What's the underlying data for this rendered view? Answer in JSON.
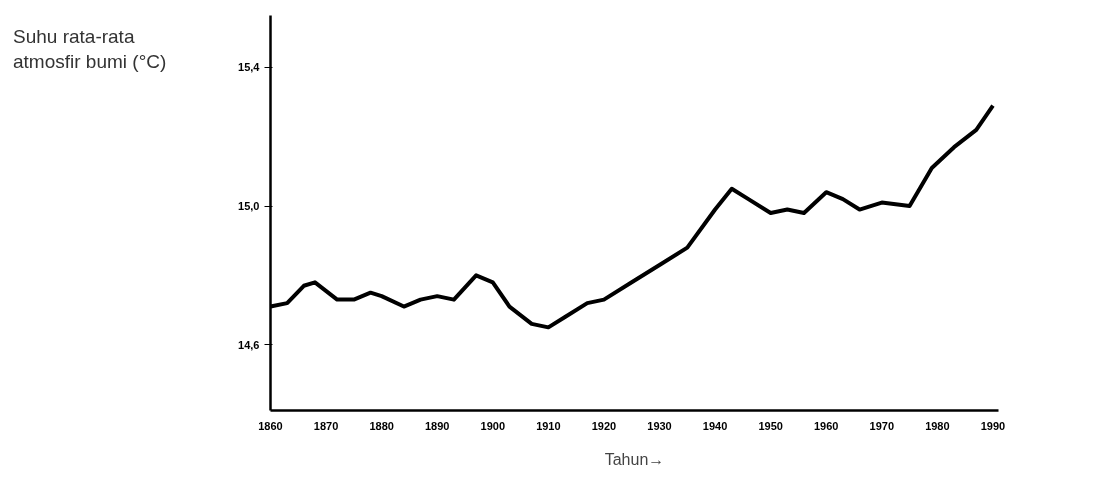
{
  "chart_data": {
    "type": "line",
    "ylabel": "Suhu rata-rata atmosfir bumi (°C)",
    "xlabel": "Tahun→",
    "x": [
      1860,
      1863,
      1866,
      1868,
      1872,
      1875,
      1878,
      1880,
      1884,
      1887,
      1890,
      1893,
      1897,
      1900,
      1903,
      1907,
      1910,
      1913,
      1917,
      1920,
      1925,
      1930,
      1935,
      1940,
      1943,
      1946,
      1950,
      1953,
      1956,
      1960,
      1963,
      1966,
      1970,
      1975,
      1979,
      1983,
      1987,
      1990
    ],
    "series": [
      {
        "color": "#000000",
        "values": [
          14.71,
          14.72,
          14.77,
          14.78,
          14.73,
          14.73,
          14.75,
          14.74,
          14.71,
          14.73,
          14.74,
          14.73,
          14.8,
          14.78,
          14.71,
          14.66,
          14.65,
          14.68,
          14.72,
          14.73,
          14.78,
          14.83,
          14.88,
          14.99,
          15.05,
          15.02,
          14.98,
          14.99,
          14.98,
          15.04,
          15.02,
          14.99,
          15.01,
          15.0,
          15.11,
          15.17,
          15.22,
          15.29
        ]
      }
    ],
    "xlim": [
      1860,
      1991
    ],
    "ylim": [
      14.41,
      15.55
    ],
    "xticks": [
      1860,
      1870,
      1880,
      1890,
      1900,
      1910,
      1920,
      1930,
      1940,
      1950,
      1960,
      1970,
      1980,
      1990
    ],
    "yticks": [
      {
        "value": 14.6,
        "label": "14,6"
      },
      {
        "value": 15.0,
        "label": "15,0"
      },
      {
        "value": 15.4,
        "label": "15,4"
      }
    ],
    "grid": false,
    "marker": "none",
    "line_style": "solid"
  }
}
